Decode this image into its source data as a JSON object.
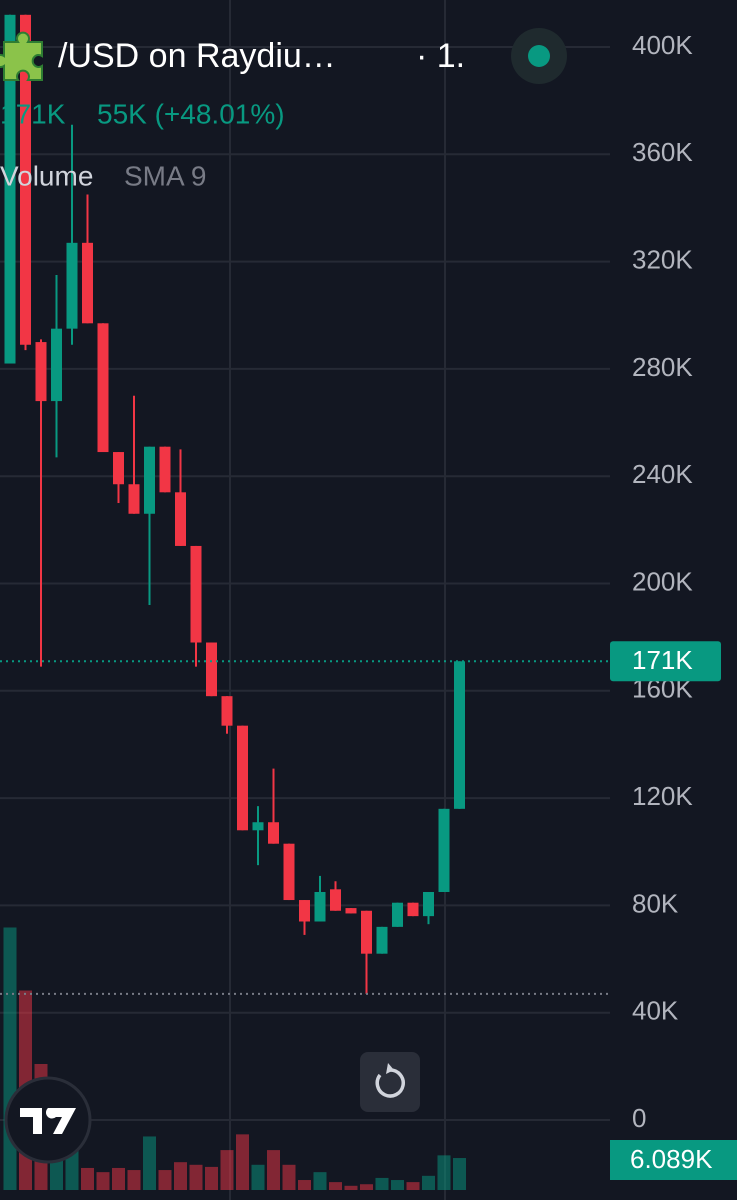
{
  "chart_data": {
    "type": "candlestick",
    "title": "/USD on Raydiu…",
    "interval": "· 1.",
    "last_price_label": "171K",
    "change": "55K (+48.01%)",
    "volume_title": "Volume",
    "volume_indicator": "SMA 9",
    "last_volume_label": "6.089K",
    "up_color": "#089981",
    "down_color": "#f23645",
    "grid": true,
    "ylim": [
      0,
      417000
    ],
    "yticks": [
      0,
      {
        "value": 40000,
        "label": "40K"
      },
      {
        "value": 80000,
        "label": "80K"
      },
      {
        "value": 120000,
        "label": "120K"
      },
      {
        "value": 160000,
        "label": "160K"
      },
      {
        "value": 200000,
        "label": "200K"
      },
      {
        "value": 240000,
        "label": "240K"
      },
      {
        "value": 280000,
        "label": "280K"
      },
      {
        "value": 320000,
        "label": "320K"
      },
      {
        "value": 360000,
        "label": "360K"
      },
      {
        "value": 400000,
        "label": "400K"
      }
    ],
    "volume_ylim": [
      0,
      40000
    ],
    "open": [
      282000,
      412000,
      290000,
      268000,
      295000,
      327000,
      297000,
      249000,
      237000,
      226000,
      251000,
      234000,
      214000,
      178000,
      158000,
      147000,
      108000,
      111000,
      103000,
      82000,
      74000,
      86000,
      79000,
      78000,
      62000,
      72000,
      81000,
      76000,
      85000,
      116000
    ],
    "high": [
      412000,
      412000,
      291000,
      315000,
      371000,
      345000,
      297000,
      249000,
      270000,
      251000,
      251000,
      250000,
      214000,
      178000,
      158000,
      147000,
      117000,
      131000,
      103000,
      82000,
      91000,
      89000,
      79000,
      78000,
      72000,
      81000,
      81000,
      85000,
      116000,
      171000
    ],
    "low": [
      282000,
      287000,
      169000,
      247000,
      289000,
      297000,
      249000,
      230000,
      226000,
      192000,
      234000,
      214000,
      169000,
      158000,
      144000,
      108000,
      95000,
      103000,
      82000,
      69000,
      74000,
      78000,
      77000,
      47000,
      62000,
      72000,
      76000,
      73000,
      85000,
      116000
    ],
    "close": [
      412000,
      289000,
      268000,
      295000,
      327000,
      297000,
      249000,
      237000,
      226000,
      251000,
      234000,
      214000,
      178000,
      158000,
      147000,
      108000,
      111000,
      103000,
      82000,
      74000,
      85000,
      78000,
      77000,
      62000,
      72000,
      81000,
      76000,
      85000,
      116000,
      171000
    ],
    "volume": [
      50000,
      38000,
      24000,
      19000,
      7600,
      4200,
      3400,
      4200,
      3800,
      10200,
      3800,
      5300,
      4800,
      4400,
      7600,
      10600,
      4800,
      7600,
      4800,
      1900,
      3400,
      1500,
      800,
      1100,
      2300,
      1900,
      1500,
      2700,
      6600,
      6089
    ]
  }
}
